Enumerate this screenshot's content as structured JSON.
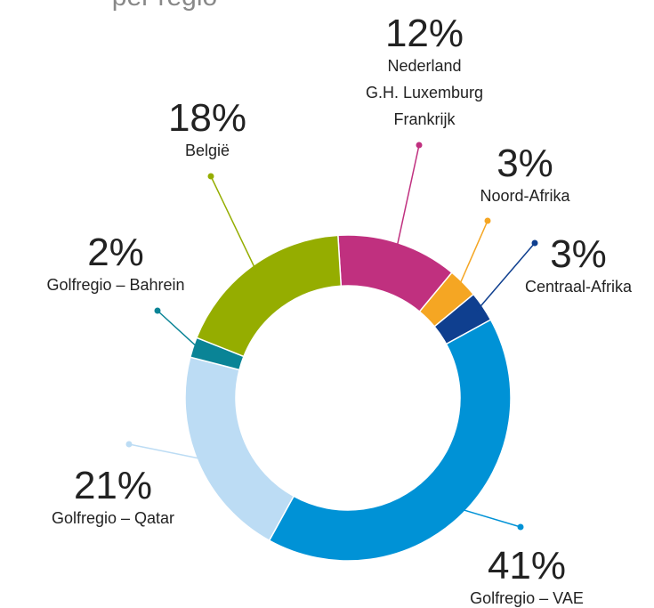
{
  "chart_data": {
    "type": "donut",
    "title": "per regio",
    "categories": [
      [
        "Nederland",
        "G.H. Luxemburg",
        "Frankrijk"
      ],
      [
        "Noord-Afrika"
      ],
      [
        "Centraal-Afrika"
      ],
      [
        "Golfregio – VAE"
      ],
      [
        "Golfregio – Qatar"
      ],
      [
        "Golfregio – Bahrein"
      ],
      [
        "België"
      ]
    ],
    "values": [
      12,
      3,
      3,
      41,
      21,
      2,
      18
    ],
    "value_labels": [
      "12%",
      "3%",
      "3%",
      "41%",
      "21%",
      "2%",
      "18%"
    ],
    "colors": [
      "#c0307f",
      "#f5a623",
      "#0f3f8f",
      "#0092d6",
      "#bcdcf4",
      "#0a8496",
      "#95ad00"
    ]
  }
}
